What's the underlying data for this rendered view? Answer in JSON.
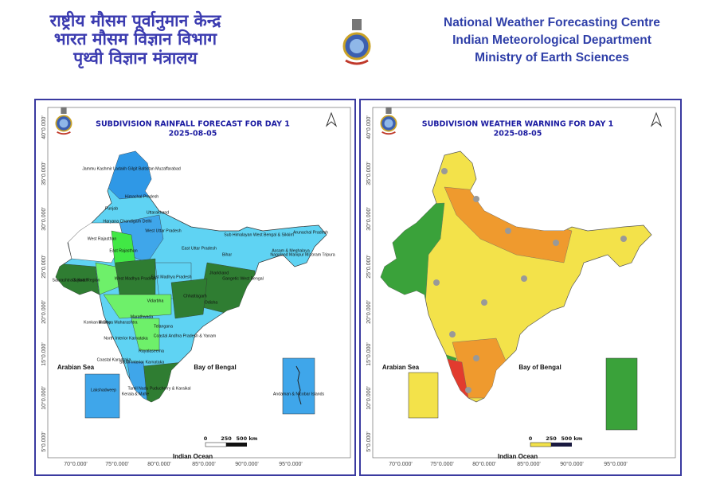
{
  "header": {
    "hindi_lines": [
      "राष्ट्रीय मौसम पूर्वानुमान केन्द्र",
      "भारत मौसम विज्ञान विभाग",
      "पृथ्वी विज्ञान मंत्रालय"
    ],
    "english_lines": [
      "National Weather Forecasting Centre",
      "Indian Meteorological Department",
      "Ministry of Earth Sciences"
    ]
  },
  "graticule": {
    "lat_labels": [
      "40°0.000'",
      "35°0.000'",
      "30°0.000'",
      "25°0.000'",
      "20°0.000'",
      "15°0.000'",
      "10°0.000'",
      "5°0.000'"
    ],
    "lon_labels": [
      "70°0.000'",
      "75°0.000'",
      "80°0.000'",
      "85°0.000'",
      "90°0.000'",
      "95°0.000'"
    ]
  },
  "sea_labels": [
    "Arabian Sea",
    "Bay of Bengal",
    "Indian Ocean"
  ],
  "scale_labels": [
    "0",
    "250",
    "500 km"
  ],
  "panels": [
    {
      "title": "SUBDIVISION RAINFALL FORECAST FOR DAY 1",
      "date": "2025-08-05",
      "region_labels": [
        "Jammu Kashmir Ladakh Gilgit Baltistan Muzaffarabad",
        "Himachal Pradesh",
        "Punjab",
        "Uttarakhand",
        "Haryana Chandigarh Delhi",
        "West Uttar Pradesh",
        "East Uttar Pradesh",
        "West Rajasthan",
        "East Rajasthan",
        "Bihar",
        "Sub Himalayan West Bengal & Sikkim",
        "Arunachal Pradesh",
        "Assam & Meghalaya",
        "Nagaland Manipur Mizoram Tripura",
        "Gangetic West Bengal",
        "Jharkhand",
        "West Madhya Pradesh",
        "East Madhya Pradesh",
        "Gujarat Region",
        "Saurashtra & Kutch",
        "Vidarbha",
        "Chhattisgarh",
        "Odisha",
        "Marathwada",
        "Madhya Maharashtra",
        "Konkan & Goa",
        "Telangana",
        "North Interior Karnataka",
        "Coastal Andhra Pradesh & Yanam",
        "Rayalaseema",
        "Coastal Karnataka",
        "South Interior Karnataka",
        "Tamil Nadu Puducherry & Karaikal",
        "Kerala & Mahe",
        "Lakshadweep",
        "Andaman & Nicobar Islands"
      ]
    },
    {
      "title": "SUBDIVISION WEATHER WARNING FOR DAY 1",
      "date": "2025-08-05"
    }
  ]
}
